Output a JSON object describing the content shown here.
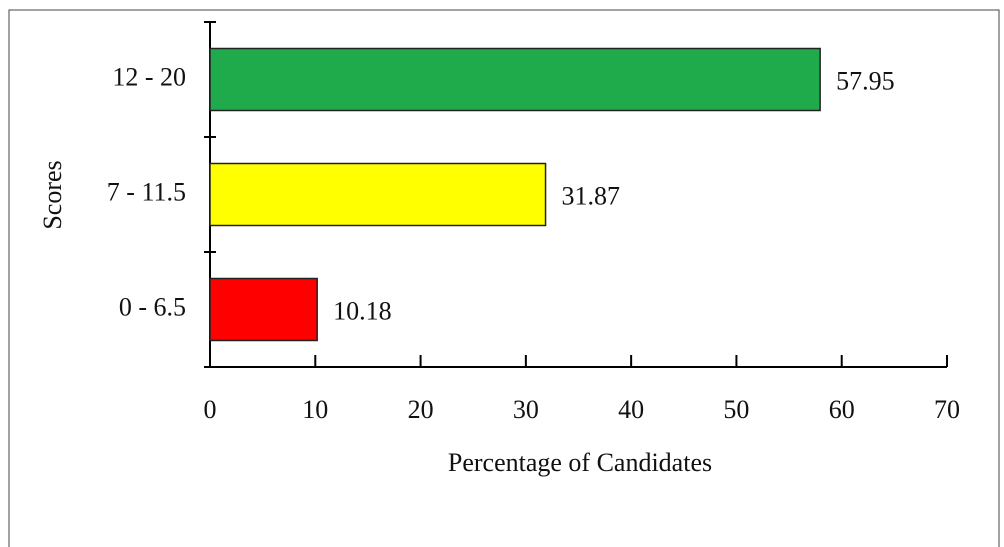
{
  "chart_data": {
    "type": "barh",
    "categories": [
      "0 - 6.5",
      "7 - 11.5",
      "12 - 20"
    ],
    "values": [
      10.18,
      31.87,
      57.95
    ],
    "colors": [
      "#ff0000",
      "#ffff00",
      "#1faa4b"
    ],
    "xlabel": "Percentage of Candidates",
    "ylabel": "Scores",
    "xlim": [
      0,
      70
    ],
    "xticks": [
      0,
      10,
      20,
      30,
      40,
      50,
      60,
      70
    ]
  }
}
